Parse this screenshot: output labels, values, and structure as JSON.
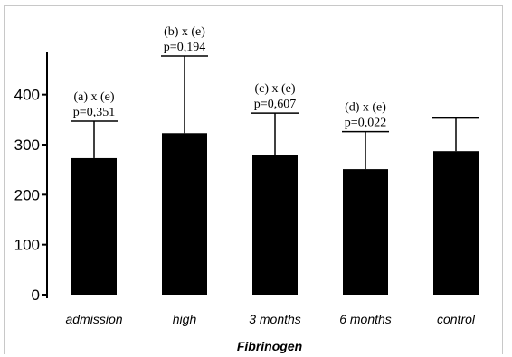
{
  "chart_data": {
    "type": "bar",
    "title": "",
    "xlabel": "Fibrinogen",
    "ylabel": "",
    "ylim": [
      0,
      480
    ],
    "yticks": [
      0,
      100,
      200,
      300,
      400
    ],
    "grid": false,
    "legend": "none",
    "bar_color": "#000000",
    "categories": [
      "admission",
      "high",
      "3 months",
      "6 months",
      "control"
    ],
    "values": [
      273,
      323,
      279,
      251,
      287
    ],
    "error_upper": [
      347,
      477,
      363,
      326,
      353
    ],
    "annotations": [
      {
        "category": "admission",
        "line1": "(a) x (e)",
        "line2": "p=0,351"
      },
      {
        "category": "high",
        "line1": "(b) x (e)",
        "line2": "p=0,194"
      },
      {
        "category": "3 months",
        "line1": "(c) x (e)",
        "line2": "p=0,607"
      },
      {
        "category": "6 months",
        "line1": "(d) x (e)",
        "line2": "p=0,022"
      }
    ]
  }
}
